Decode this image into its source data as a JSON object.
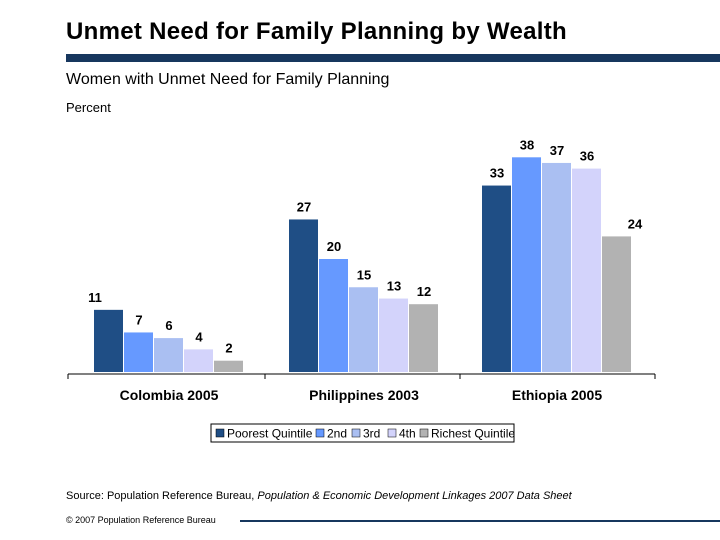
{
  "slide": {
    "title": "Unmet Need for Family Planning by Wealth",
    "source_prefix": "Source: Population Reference Bureau, ",
    "source_italic": "Population & Economic Development Linkages 2007 Data Sheet",
    "copyright": "© 2007 Population Reference Bureau"
  },
  "colors": {
    "title_rule": "#17375e"
  },
  "chart_data": {
    "type": "bar",
    "title": "Women with Unmet Need for Family Planning",
    "ylabel": "Percent",
    "ylim": [
      0,
      40
    ],
    "grid": false,
    "legend_position": "bottom",
    "categories": [
      "Colombia 2005",
      "Philippines 2003",
      "Ethiopia 2005"
    ],
    "series": [
      {
        "name": "Poorest Quintile",
        "color": "#1f4e85",
        "values": [
          11,
          27,
          33
        ]
      },
      {
        "name": "2nd",
        "color": "#6699ff",
        "values": [
          7,
          20,
          38
        ]
      },
      {
        "name": "3rd",
        "color": "#aabff2",
        "values": [
          6,
          15,
          37
        ]
      },
      {
        "name": "4th",
        "color": "#d3d3fb",
        "values": [
          4,
          13,
          36
        ]
      },
      {
        "name": "Richest Quintile",
        "color": "#b2b2b2",
        "values": [
          2,
          12,
          24
        ]
      }
    ]
  }
}
